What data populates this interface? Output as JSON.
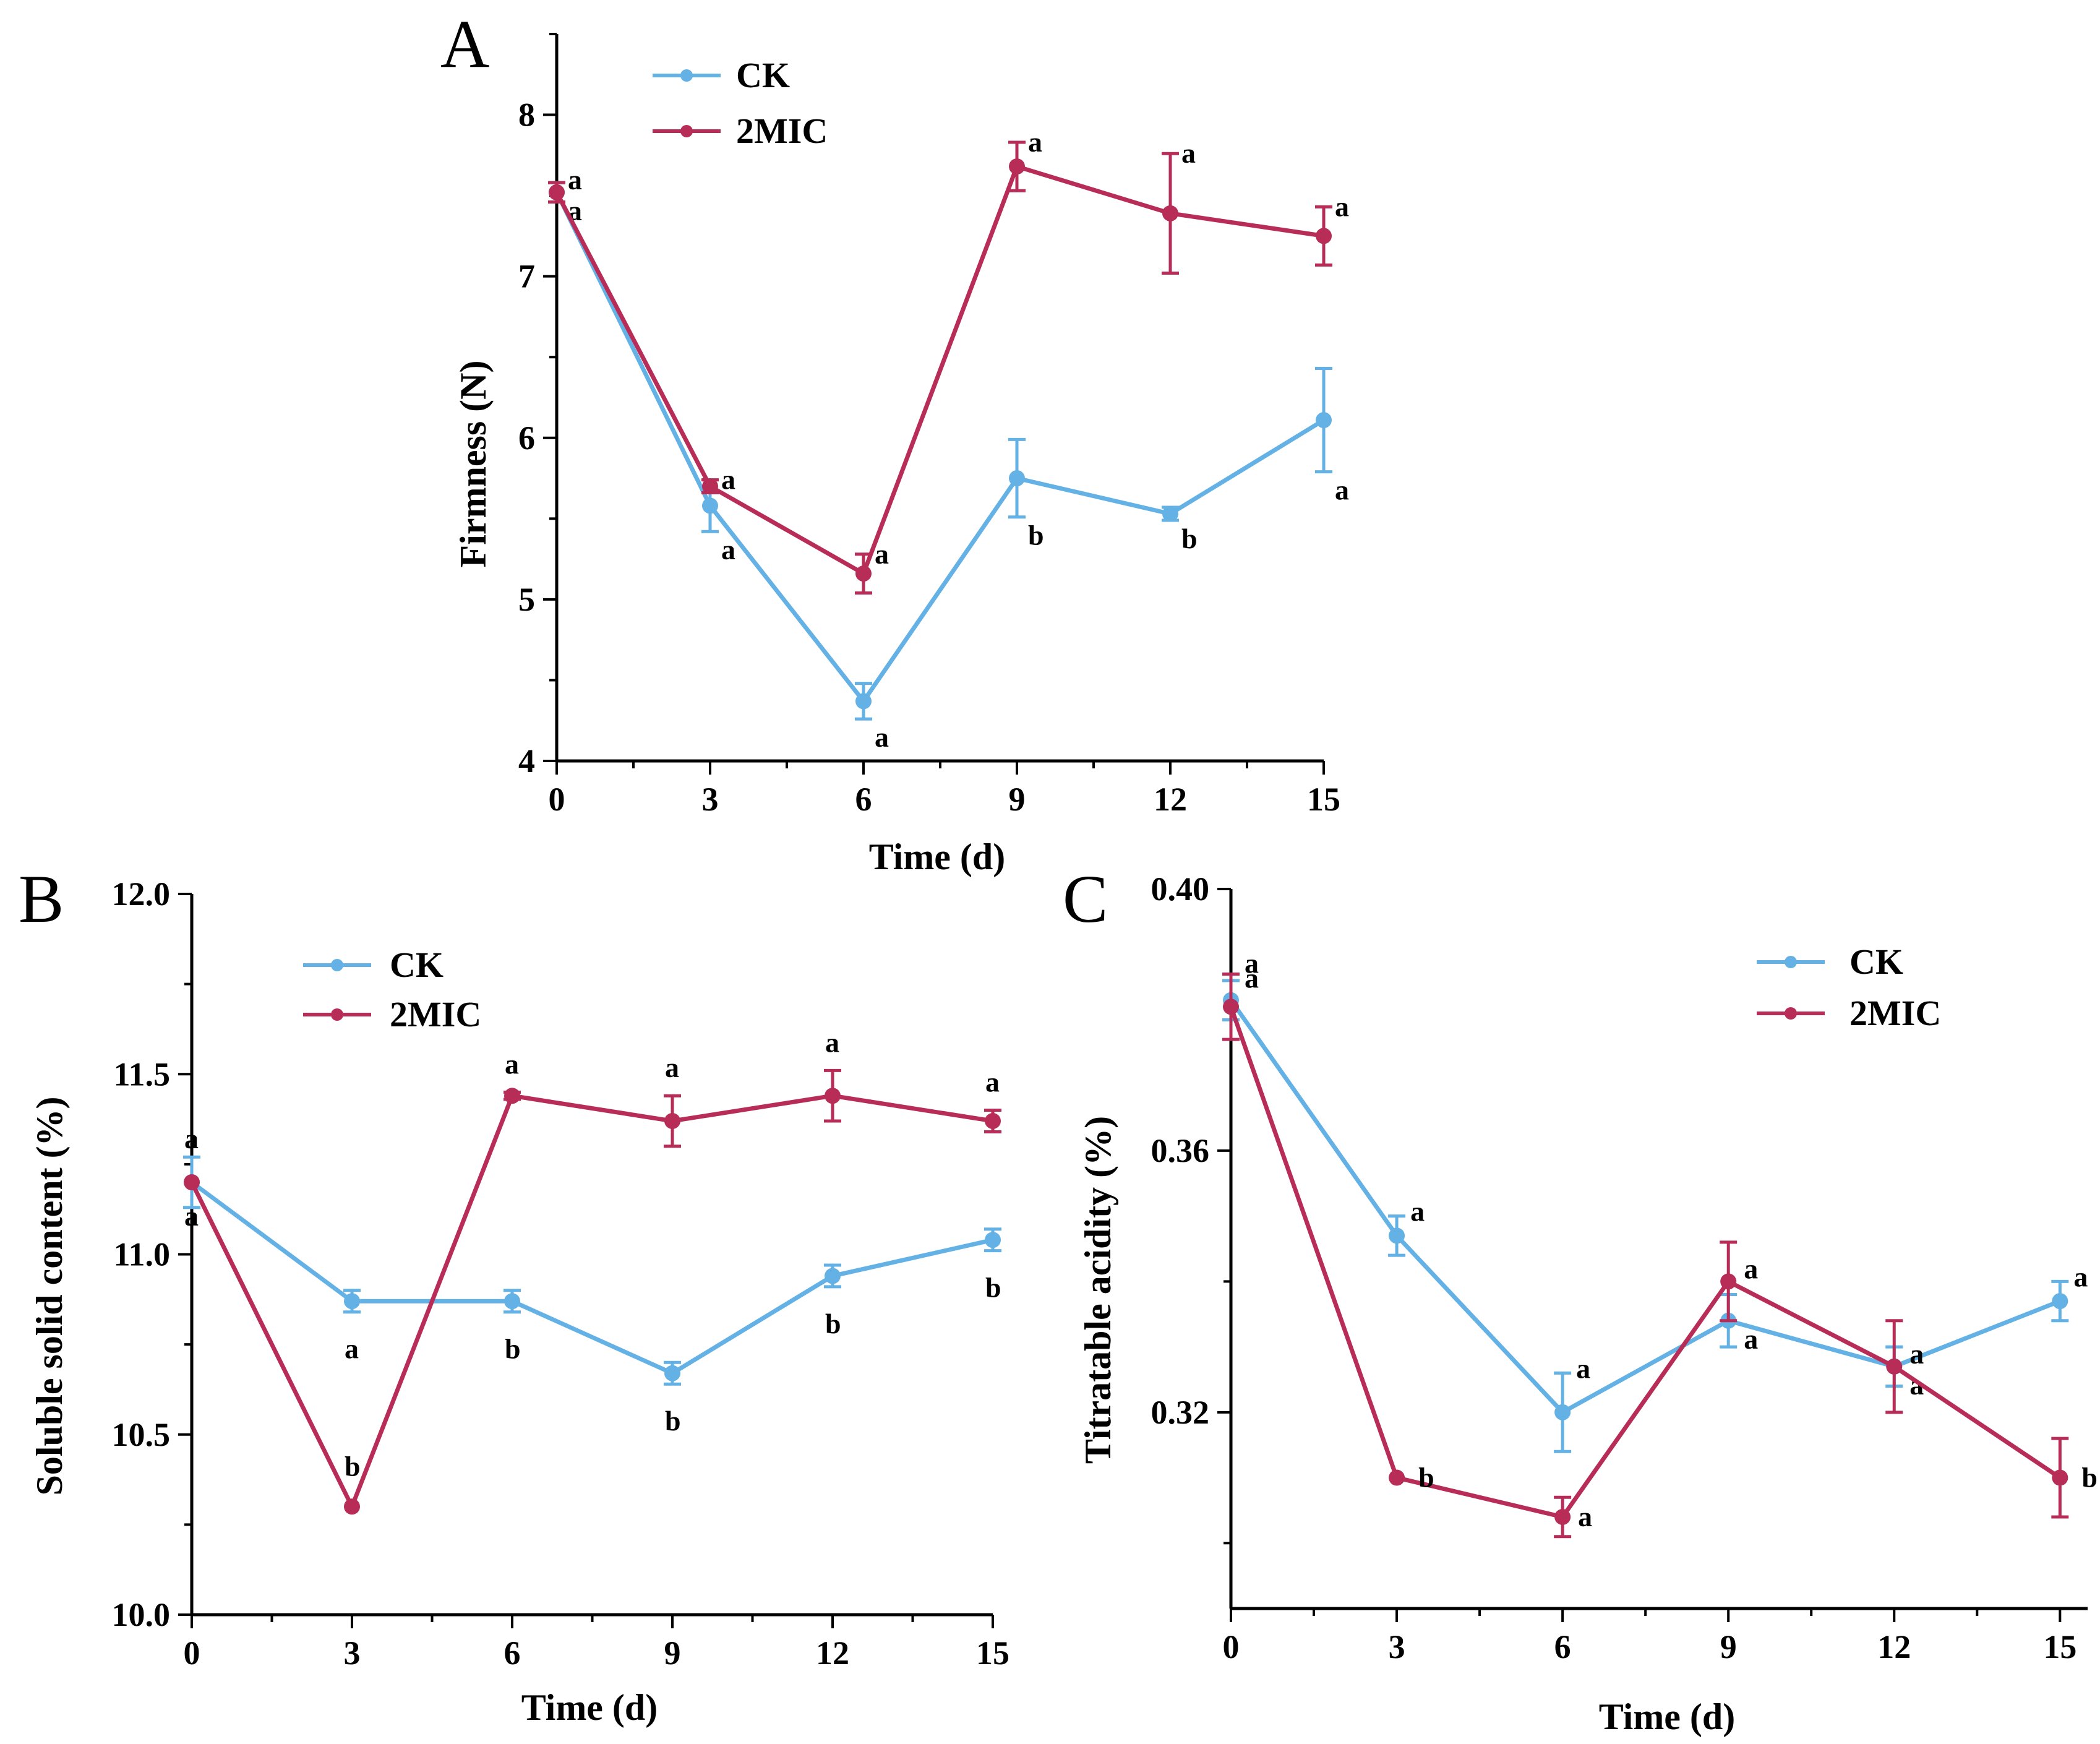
{
  "chart_data": [
    {
      "panel": "A",
      "type": "line",
      "xlabel": "Time (d)",
      "ylabel": "Firmness (N)",
      "x": [
        0,
        3,
        6,
        9,
        12,
        15
      ],
      "xticks": [
        "0",
        "3",
        "6",
        "9",
        "12",
        "15"
      ],
      "xlim": [
        0,
        15
      ],
      "ylim": [
        4,
        8.5
      ],
      "yticks": [
        "4",
        "5",
        "6",
        "7",
        "8"
      ],
      "ytick_values": [
        4,
        5,
        6,
        7,
        8
      ],
      "legend": "top-left",
      "series": [
        {
          "name": "CK",
          "color": "#63b1e5",
          "values": [
            7.52,
            5.58,
            4.37,
            5.75,
            5.53,
            6.11
          ],
          "errors": [
            0.06,
            0.16,
            0.11,
            0.24,
            0.04,
            0.32
          ],
          "sig": [
            "a",
            "a",
            "a",
            "b",
            "b",
            "a"
          ]
        },
        {
          "name": "2MIC",
          "color": "#b82d58",
          "values": [
            7.52,
            5.7,
            5.16,
            7.68,
            7.39,
            7.25
          ],
          "errors": [
            0.06,
            0.04,
            0.12,
            0.15,
            0.37,
            0.18
          ],
          "sig": [
            "a",
            "a",
            "a",
            "a",
            "a",
            "a"
          ]
        }
      ]
    },
    {
      "panel": "B",
      "type": "line",
      "xlabel": "Time (d)",
      "ylabel": "Soluble solid content (%)",
      "x": [
        0,
        3,
        6,
        9,
        12,
        15
      ],
      "xticks": [
        "0",
        "3",
        "6",
        "9",
        "12",
        "15"
      ],
      "xlim": [
        0,
        15
      ],
      "ylim": [
        10.0,
        12.0
      ],
      "yticks": [
        "10.0",
        "10.5",
        "11.0",
        "11.5",
        "12.0"
      ],
      "ytick_values": [
        10.0,
        10.5,
        11.0,
        11.5,
        12.0
      ],
      "legend": "top-left",
      "series": [
        {
          "name": "CK",
          "color": "#63b1e5",
          "values": [
            11.2,
            10.87,
            10.87,
            10.67,
            10.94,
            11.04
          ],
          "errors": [
            0.07,
            0.03,
            0.03,
            0.03,
            0.03,
            0.03
          ],
          "sig": [
            "a",
            "a",
            "b",
            "b",
            "b",
            "b"
          ]
        },
        {
          "name": "2MIC",
          "color": "#b82d58",
          "values": [
            11.2,
            10.3,
            11.44,
            11.37,
            11.44,
            11.37
          ],
          "errors": [
            0.0,
            0.0,
            0.01,
            0.07,
            0.07,
            0.03
          ],
          "sig": [
            "a",
            "b",
            "a",
            "a",
            "a",
            "a"
          ]
        }
      ]
    },
    {
      "panel": "C",
      "type": "line",
      "xlabel": "Time (d)",
      "ylabel": "Titratable acidity (%)",
      "x": [
        0,
        3,
        6,
        9,
        12,
        15
      ],
      "xticks": [
        "0",
        "3",
        "6",
        "9",
        "12",
        "15"
      ],
      "xlim": [
        0,
        15.5
      ],
      "ylim": [
        0.29,
        0.4
      ],
      "yticks": [
        "0.32",
        "0.36",
        "0.40"
      ],
      "ytick_values": [
        0.32,
        0.36,
        0.4
      ],
      "legend": "top-right",
      "series": [
        {
          "name": "CK",
          "color": "#63b1e5",
          "values": [
            0.383,
            0.347,
            0.32,
            0.334,
            0.327,
            0.337
          ],
          "errors": [
            0.003,
            0.003,
            0.006,
            0.004,
            0.003,
            0.003
          ],
          "sig": [
            "a",
            "a",
            "a",
            "a",
            "a",
            "a"
          ]
        },
        {
          "name": "2MIC",
          "color": "#b82d58",
          "values": [
            0.382,
            0.31,
            0.304,
            0.34,
            0.327,
            0.31
          ],
          "errors": [
            0.005,
            0.0,
            0.003,
            0.006,
            0.007,
            0.006
          ],
          "sig": [
            "a",
            "b",
            "a",
            "a",
            "a",
            "b"
          ]
        }
      ]
    }
  ]
}
